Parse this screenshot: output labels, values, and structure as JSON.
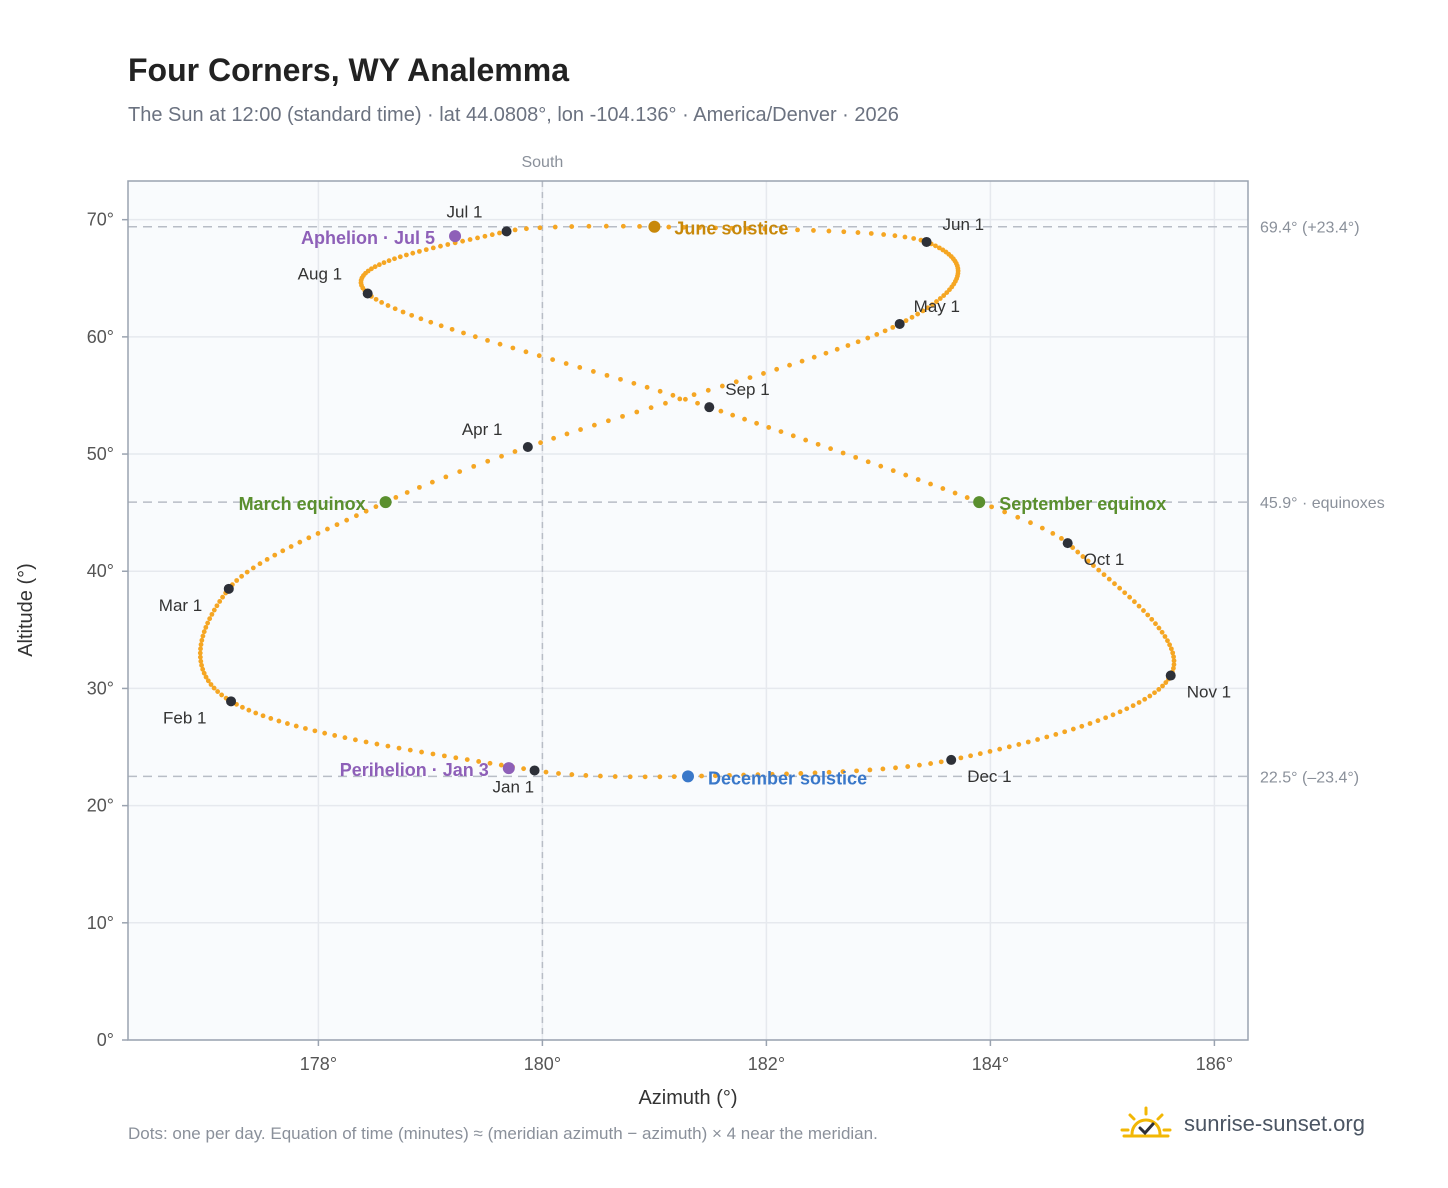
{
  "title": "Four Corners, WY Analemma",
  "subtitle": "The Sun at 12:00 (standard time) · lat 44.0808°, lon -104.136° · America/Denver · 2026",
  "footnote": "Dots: one per day. Equation of time (minutes) ≈ (meridian azimuth − azimuth) × 4 near the meridian.",
  "brand": {
    "name": "sunrise-sunset.org",
    "icon": "sun-check-icon"
  },
  "colors": {
    "path": "#f5a623",
    "month_dot": "#2d3038",
    "june_solstice": "#c8880a",
    "december_solstice": "#3a78c9",
    "equinox": "#5a8f2e",
    "apsis": "#8e60b8",
    "grid": "#e6e9ee",
    "plot_bg": "#f9fbfd",
    "ref_line": "#b8bdc6"
  },
  "chart_data": {
    "type": "scatter",
    "xlabel": "Azimuth (°)",
    "ylabel": "Altitude (°)",
    "xlim": [
      176.3,
      186.3
    ],
    "ylim": [
      0,
      73.3
    ],
    "xticks": [
      178,
      180,
      182,
      184,
      186
    ],
    "xtick_labels": [
      "178°",
      "180°",
      "182°",
      "184°",
      "186°"
    ],
    "yticks": [
      0,
      10,
      20,
      30,
      40,
      50,
      60,
      70
    ],
    "ytick_labels": [
      "0°",
      "10°",
      "20°",
      "30°",
      "40°",
      "50°",
      "60°",
      "70°"
    ],
    "grid": true,
    "meridian": {
      "x": 180,
      "label": "South"
    },
    "reference_lines": [
      {
        "y": 69.4,
        "label": "69.4° (+23.4°)"
      },
      {
        "y": 45.9,
        "label": "45.9° · equinoxes"
      },
      {
        "y": 22.5,
        "label": "22.5° (–23.4°)"
      }
    ],
    "month_markers": [
      {
        "label": "Jan 1",
        "x": 179.93,
        "y": 23.0
      },
      {
        "label": "Feb 1",
        "x": 177.22,
        "y": 28.9
      },
      {
        "label": "Mar 1",
        "x": 177.2,
        "y": 38.5
      },
      {
        "label": "Apr 1",
        "x": 179.87,
        "y": 50.6
      },
      {
        "label": "May 1",
        "x": 183.19,
        "y": 61.1
      },
      {
        "label": "Jun 1",
        "x": 183.43,
        "y": 68.1
      },
      {
        "label": "Jul 1",
        "x": 179.68,
        "y": 69.0
      },
      {
        "label": "Aug 1",
        "x": 178.44,
        "y": 63.7
      },
      {
        "label": "Sep 1",
        "x": 181.49,
        "y": 54.0
      },
      {
        "label": "Oct 1",
        "x": 184.69,
        "y": 42.4
      },
      {
        "label": "Nov 1",
        "x": 185.61,
        "y": 31.1
      },
      {
        "label": "Dec 1",
        "x": 183.65,
        "y": 23.9
      }
    ],
    "events": [
      {
        "label": "June solstice",
        "x": 181.0,
        "y": 69.4,
        "kind": "june_solstice"
      },
      {
        "label": "December solstice",
        "x": 181.3,
        "y": 22.5,
        "kind": "december_solstice"
      },
      {
        "label": "March equinox",
        "x": 178.6,
        "y": 45.9,
        "kind": "equinox"
      },
      {
        "label": "September equinox",
        "x": 183.9,
        "y": 45.9,
        "kind": "equinox"
      },
      {
        "label": "Aphelion · Jul 5",
        "x": 179.22,
        "y": 68.6,
        "kind": "apsis"
      },
      {
        "label": "Perihelion · Jan 3",
        "x": 179.7,
        "y": 23.2,
        "kind": "apsis"
      }
    ]
  }
}
